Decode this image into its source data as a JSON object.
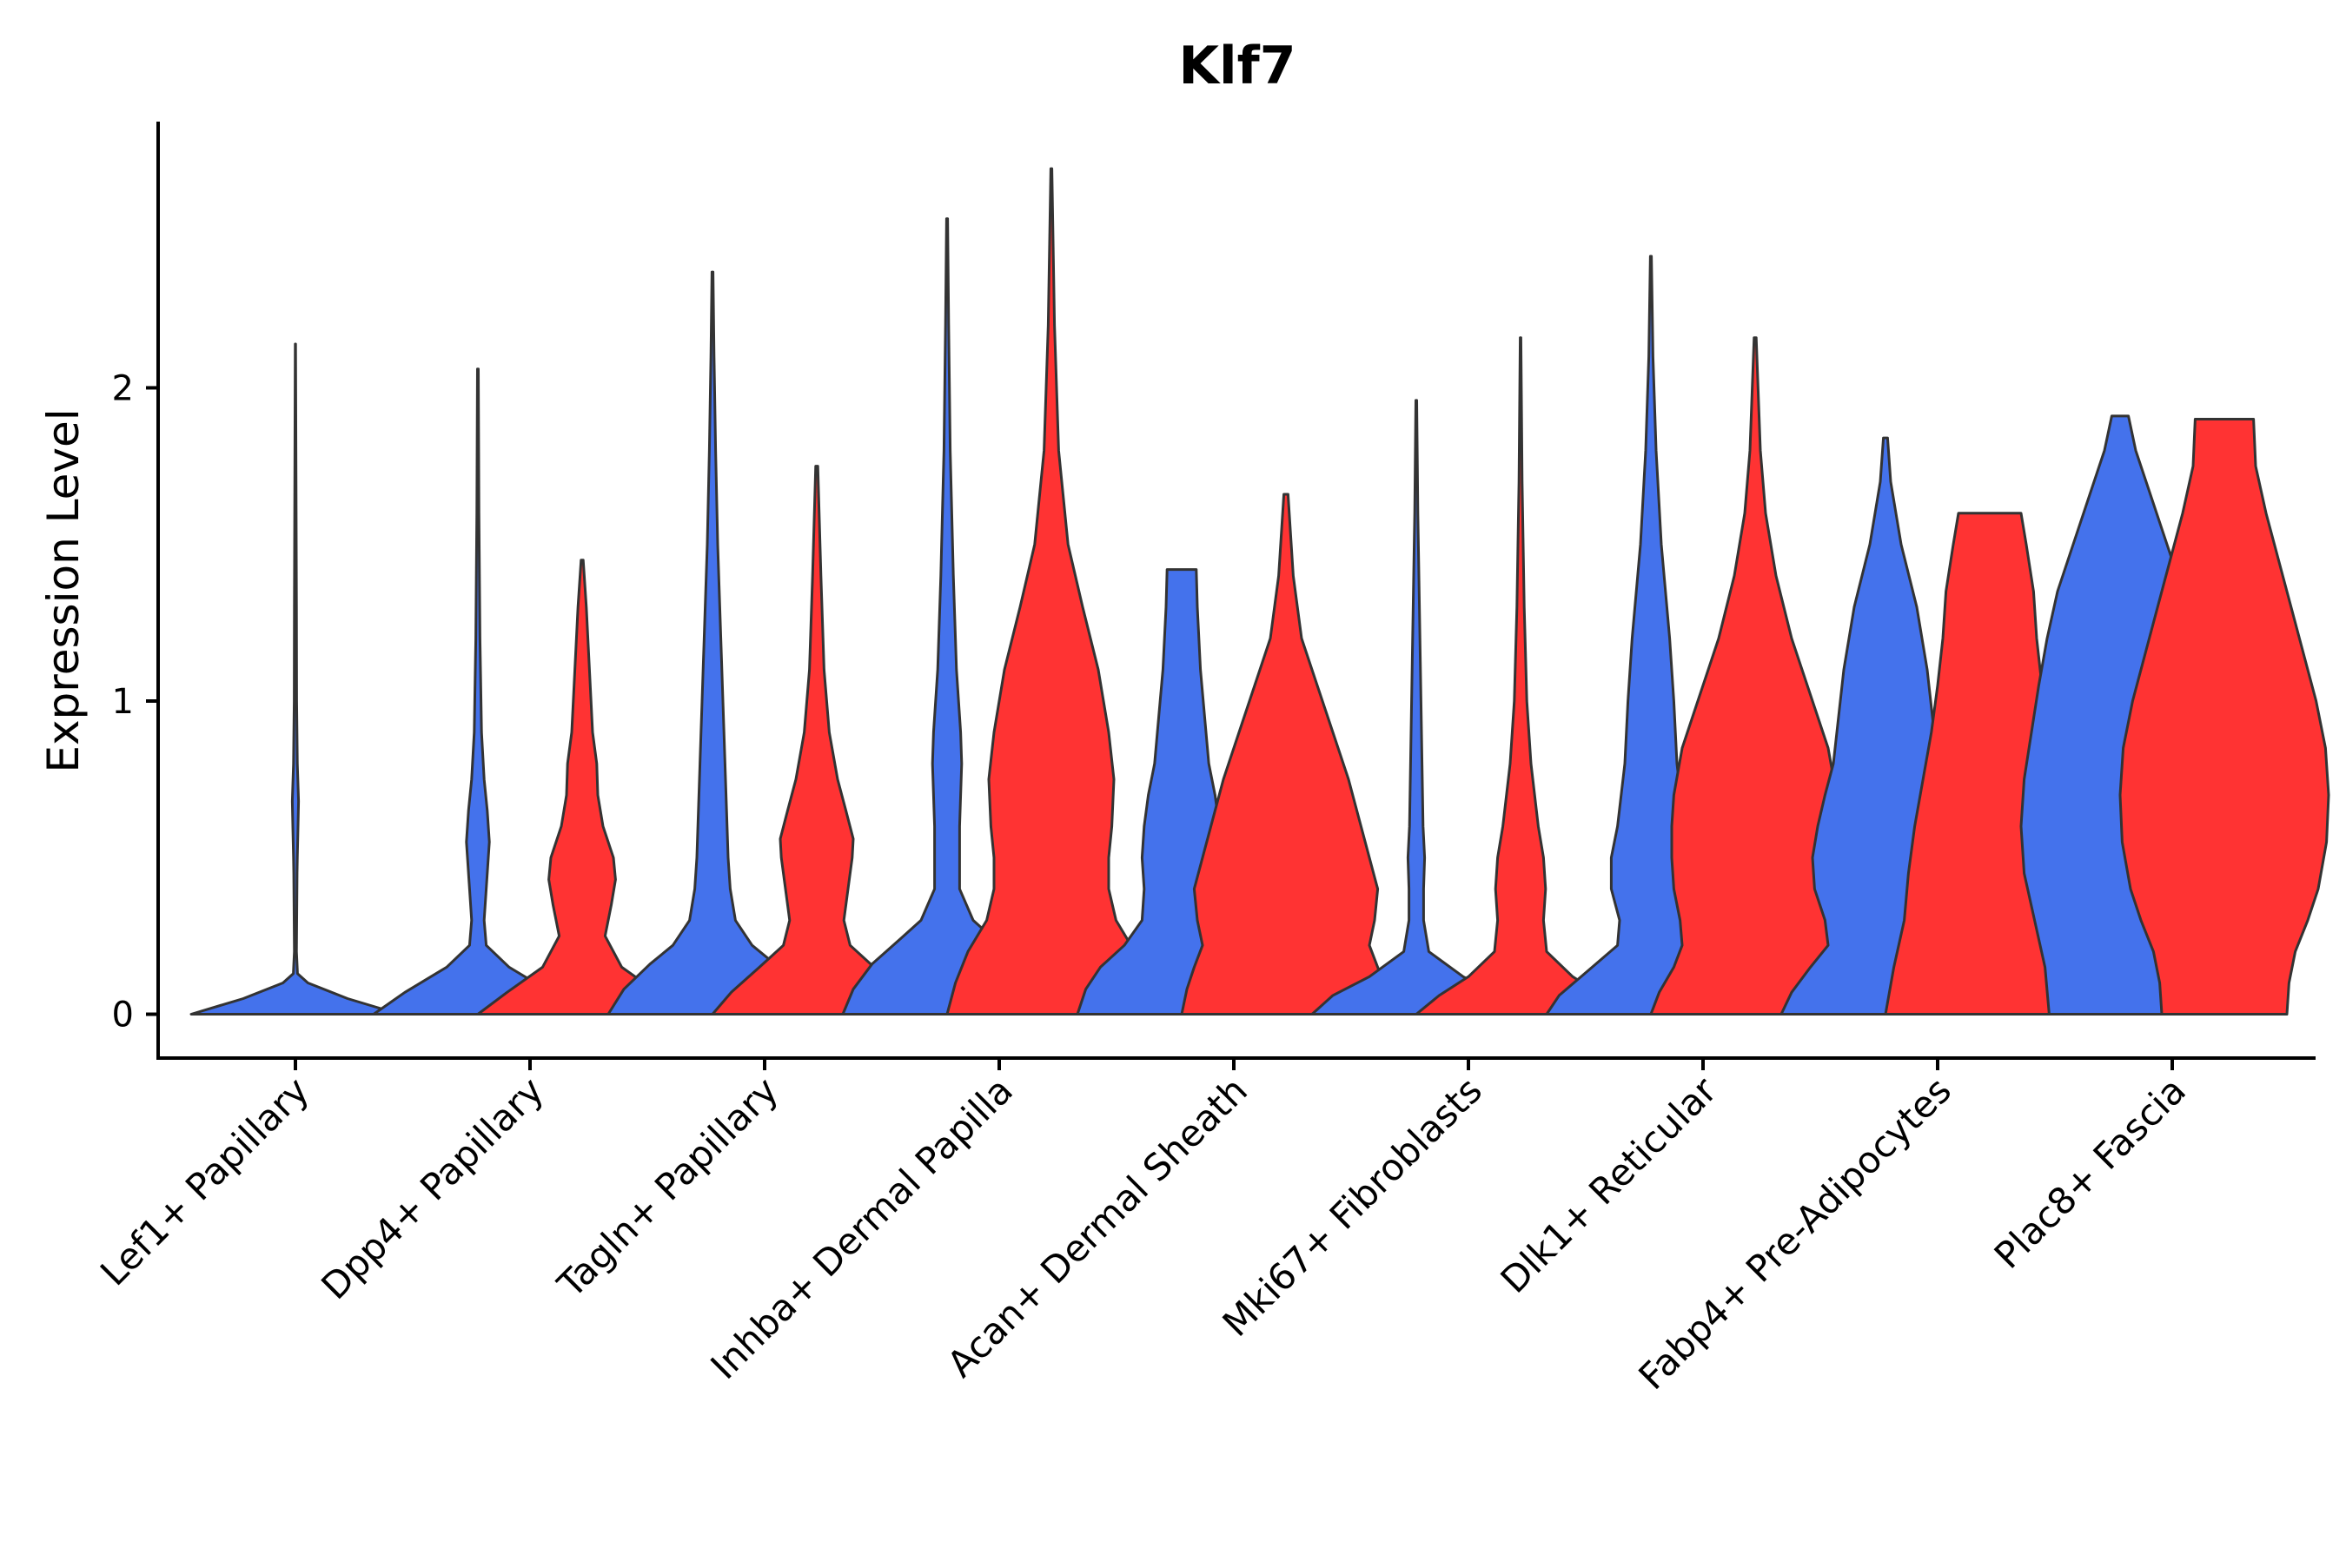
{
  "chart_data": {
    "type": "violin",
    "title": "Klf7",
    "xlabel": "",
    "ylabel": "Expression Level",
    "ylim": [
      -0.14,
      2.85
    ],
    "yticks": [
      0,
      1,
      2
    ],
    "grid": false,
    "legend": "none",
    "colors": {
      "blue": "#4472EC",
      "red": "#FF3333",
      "outline": "#333333"
    },
    "categories": [
      "Lef1+ Papillary",
      "Dpp4+ Papillary",
      "Tagln+ Papillary",
      "Inhba+ Dermal Papilla",
      "Acan+ Dermal Sheath",
      "Mki67+ Fibroblasts",
      "Dlk1+ Reticular",
      "Fabp4+ Pre-Adipocytes",
      "Plac8+ Fascia"
    ],
    "violins": [
      {
        "category": 0,
        "series": "blue",
        "max": 2.14,
        "profile": [
          [
            0,
            1.0
          ],
          [
            0.05,
            0.5
          ],
          [
            0.1,
            0.12
          ],
          [
            0.13,
            0.02
          ],
          [
            0.2,
            0.01
          ],
          [
            0.45,
            0.016
          ],
          [
            0.5,
            0.018
          ],
          [
            0.6,
            0.025
          ],
          [
            0.68,
            0.03
          ],
          [
            0.8,
            0.018
          ],
          [
            1.0,
            0.012
          ],
          [
            1.3,
            0.01
          ],
          [
            1.8,
            0.005
          ],
          [
            2.14,
            0.002
          ]
        ]
      },
      {
        "category": 1,
        "series": "blue",
        "max": 2.06,
        "profile": [
          [
            0,
            1.0
          ],
          [
            0.07,
            0.7
          ],
          [
            0.15,
            0.3
          ],
          [
            0.22,
            0.08
          ],
          [
            0.3,
            0.06
          ],
          [
            0.4,
            0.08
          ],
          [
            0.5,
            0.1
          ],
          [
            0.55,
            0.11
          ],
          [
            0.65,
            0.09
          ],
          [
            0.75,
            0.06
          ],
          [
            0.9,
            0.035
          ],
          [
            1.2,
            0.02
          ],
          [
            1.6,
            0.01
          ],
          [
            2.06,
            0.004
          ]
        ]
      },
      {
        "category": 1,
        "series": "red",
        "max": 1.45,
        "profile": [
          [
            0,
            1.0
          ],
          [
            0.07,
            0.72
          ],
          [
            0.15,
            0.38
          ],
          [
            0.25,
            0.22
          ],
          [
            0.35,
            0.28
          ],
          [
            0.43,
            0.32
          ],
          [
            0.5,
            0.3
          ],
          [
            0.6,
            0.2
          ],
          [
            0.7,
            0.15
          ],
          [
            0.8,
            0.14
          ],
          [
            0.9,
            0.1
          ],
          [
            1.1,
            0.07
          ],
          [
            1.3,
            0.04
          ],
          [
            1.45,
            0.01
          ]
        ]
      },
      {
        "category": 2,
        "series": "blue",
        "max": 2.37,
        "profile": [
          [
            0,
            1.0
          ],
          [
            0.08,
            0.85
          ],
          [
            0.16,
            0.6
          ],
          [
            0.22,
            0.38
          ],
          [
            0.3,
            0.22
          ],
          [
            0.4,
            0.17
          ],
          [
            0.5,
            0.15
          ],
          [
            0.6,
            0.14
          ],
          [
            0.8,
            0.12
          ],
          [
            1.0,
            0.1
          ],
          [
            1.2,
            0.08
          ],
          [
            1.5,
            0.05
          ],
          [
            1.8,
            0.03
          ],
          [
            2.1,
            0.015
          ],
          [
            2.37,
            0.005
          ]
        ]
      },
      {
        "category": 2,
        "series": "red",
        "max": 1.75,
        "profile": [
          [
            0,
            1.0
          ],
          [
            0.07,
            0.82
          ],
          [
            0.15,
            0.55
          ],
          [
            0.22,
            0.32
          ],
          [
            0.3,
            0.26
          ],
          [
            0.4,
            0.3
          ],
          [
            0.5,
            0.34
          ],
          [
            0.56,
            0.35
          ],
          [
            0.65,
            0.28
          ],
          [
            0.75,
            0.2
          ],
          [
            0.9,
            0.12
          ],
          [
            1.1,
            0.07
          ],
          [
            1.4,
            0.04
          ],
          [
            1.75,
            0.01
          ]
        ]
      },
      {
        "category": 3,
        "series": "blue",
        "max": 2.54,
        "profile": [
          [
            0,
            1.0
          ],
          [
            0.08,
            0.9
          ],
          [
            0.16,
            0.72
          ],
          [
            0.24,
            0.45
          ],
          [
            0.3,
            0.25
          ],
          [
            0.4,
            0.12
          ],
          [
            0.6,
            0.12
          ],
          [
            0.8,
            0.14
          ],
          [
            0.9,
            0.13
          ],
          [
            1.1,
            0.09
          ],
          [
            1.4,
            0.06
          ],
          [
            1.8,
            0.03
          ],
          [
            2.2,
            0.015
          ],
          [
            2.54,
            0.005
          ]
        ]
      },
      {
        "category": 3,
        "series": "red",
        "max": 2.7,
        "profile": [
          [
            0,
            1.0
          ],
          [
            0.1,
            0.92
          ],
          [
            0.2,
            0.8
          ],
          [
            0.3,
            0.62
          ],
          [
            0.4,
            0.55
          ],
          [
            0.5,
            0.55
          ],
          [
            0.6,
            0.58
          ],
          [
            0.75,
            0.6
          ],
          [
            0.9,
            0.55
          ],
          [
            1.1,
            0.45
          ],
          [
            1.3,
            0.3
          ],
          [
            1.5,
            0.16
          ],
          [
            1.8,
            0.07
          ],
          [
            2.2,
            0.03
          ],
          [
            2.7,
            0.005
          ]
        ]
      },
      {
        "category": 4,
        "series": "blue",
        "max": 1.42,
        "profile": [
          [
            0,
            1.0
          ],
          [
            0.08,
            0.92
          ],
          [
            0.15,
            0.78
          ],
          [
            0.22,
            0.55
          ],
          [
            0.3,
            0.38
          ],
          [
            0.4,
            0.36
          ],
          [
            0.5,
            0.38
          ],
          [
            0.6,
            0.36
          ],
          [
            0.7,
            0.32
          ],
          [
            0.8,
            0.26
          ],
          [
            0.95,
            0.22
          ],
          [
            1.1,
            0.18
          ],
          [
            1.3,
            0.15
          ],
          [
            1.42,
            0.14
          ]
        ]
      },
      {
        "category": 4,
        "series": "red",
        "max": 1.66,
        "profile": [
          [
            0,
            1.0
          ],
          [
            0.08,
            0.95
          ],
          [
            0.15,
            0.88
          ],
          [
            0.22,
            0.8
          ],
          [
            0.3,
            0.85
          ],
          [
            0.4,
            0.88
          ],
          [
            0.5,
            0.8
          ],
          [
            0.6,
            0.72
          ],
          [
            0.75,
            0.6
          ],
          [
            0.9,
            0.45
          ],
          [
            1.05,
            0.3
          ],
          [
            1.2,
            0.15
          ],
          [
            1.4,
            0.07
          ],
          [
            1.66,
            0.02
          ]
        ]
      },
      {
        "category": 5,
        "series": "blue",
        "max": 1.96,
        "profile": [
          [
            0,
            1.0
          ],
          [
            0.06,
            0.8
          ],
          [
            0.12,
            0.45
          ],
          [
            0.2,
            0.12
          ],
          [
            0.3,
            0.07
          ],
          [
            0.4,
            0.07
          ],
          [
            0.5,
            0.08
          ],
          [
            0.6,
            0.065
          ],
          [
            0.8,
            0.055
          ],
          [
            1.0,
            0.045
          ],
          [
            1.3,
            0.03
          ],
          [
            1.6,
            0.015
          ],
          [
            1.96,
            0.004
          ]
        ]
      },
      {
        "category": 5,
        "series": "red",
        "max": 2.16,
        "profile": [
          [
            0,
            1.0
          ],
          [
            0.06,
            0.78
          ],
          [
            0.12,
            0.5
          ],
          [
            0.2,
            0.25
          ],
          [
            0.3,
            0.22
          ],
          [
            0.4,
            0.24
          ],
          [
            0.5,
            0.22
          ],
          [
            0.6,
            0.17
          ],
          [
            0.8,
            0.1
          ],
          [
            1.0,
            0.06
          ],
          [
            1.3,
            0.035
          ],
          [
            1.7,
            0.015
          ],
          [
            2.16,
            0.003
          ]
        ]
      },
      {
        "category": 6,
        "series": "blue",
        "max": 2.42,
        "profile": [
          [
            0,
            1.0
          ],
          [
            0.06,
            0.88
          ],
          [
            0.14,
            0.6
          ],
          [
            0.22,
            0.32
          ],
          [
            0.3,
            0.3
          ],
          [
            0.4,
            0.38
          ],
          [
            0.5,
            0.38
          ],
          [
            0.6,
            0.32
          ],
          [
            0.8,
            0.25
          ],
          [
            1.0,
            0.22
          ],
          [
            1.2,
            0.18
          ],
          [
            1.5,
            0.1
          ],
          [
            1.8,
            0.05
          ],
          [
            2.1,
            0.02
          ],
          [
            2.42,
            0.005
          ]
        ]
      },
      {
        "category": 6,
        "series": "red",
        "max": 2.16,
        "profile": [
          [
            0,
            1.0
          ],
          [
            0.07,
            0.92
          ],
          [
            0.15,
            0.78
          ],
          [
            0.22,
            0.7
          ],
          [
            0.3,
            0.72
          ],
          [
            0.4,
            0.78
          ],
          [
            0.5,
            0.8
          ],
          [
            0.6,
            0.8
          ],
          [
            0.7,
            0.78
          ],
          [
            0.85,
            0.7
          ],
          [
            1.0,
            0.55
          ],
          [
            1.2,
            0.35
          ],
          [
            1.4,
            0.2
          ],
          [
            1.6,
            0.1
          ],
          [
            1.8,
            0.05
          ],
          [
            2.16,
            0.01
          ]
        ]
      },
      {
        "category": 7,
        "series": "blue",
        "max": 1.84,
        "profile": [
          [
            0,
            1.0
          ],
          [
            0.07,
            0.9
          ],
          [
            0.15,
            0.72
          ],
          [
            0.22,
            0.55
          ],
          [
            0.3,
            0.58
          ],
          [
            0.4,
            0.68
          ],
          [
            0.5,
            0.7
          ],
          [
            0.6,
            0.65
          ],
          [
            0.7,
            0.58
          ],
          [
            0.8,
            0.5
          ],
          [
            0.95,
            0.45
          ],
          [
            1.1,
            0.4
          ],
          [
            1.3,
            0.3
          ],
          [
            1.5,
            0.15
          ],
          [
            1.7,
            0.05
          ],
          [
            1.84,
            0.02
          ]
        ]
      },
      {
        "category": 7,
        "series": "red",
        "max": 1.6,
        "profile": [
          [
            0,
            1.0
          ],
          [
            0.15,
            0.92
          ],
          [
            0.3,
            0.82
          ],
          [
            0.45,
            0.78
          ],
          [
            0.6,
            0.72
          ],
          [
            0.75,
            0.64
          ],
          [
            0.9,
            0.56
          ],
          [
            1.05,
            0.5
          ],
          [
            1.2,
            0.45
          ],
          [
            1.35,
            0.42
          ],
          [
            1.5,
            0.35
          ],
          [
            1.6,
            0.3
          ]
        ]
      },
      {
        "category": 8,
        "series": "blue",
        "max": 1.91,
        "profile": [
          [
            0,
            0.68
          ],
          [
            0.15,
            0.72
          ],
          [
            0.3,
            0.82
          ],
          [
            0.45,
            0.92
          ],
          [
            0.6,
            0.95
          ],
          [
            0.75,
            0.92
          ],
          [
            0.9,
            0.85
          ],
          [
            1.05,
            0.78
          ],
          [
            1.2,
            0.7
          ],
          [
            1.35,
            0.6
          ],
          [
            1.5,
            0.45
          ],
          [
            1.65,
            0.3
          ],
          [
            1.8,
            0.15
          ],
          [
            1.91,
            0.08
          ]
        ]
      },
      {
        "category": 8,
        "series": "red",
        "max": 1.9,
        "profile": [
          [
            0,
            0.6
          ],
          [
            0.1,
            0.62
          ],
          [
            0.2,
            0.68
          ],
          [
            0.3,
            0.8
          ],
          [
            0.4,
            0.9
          ],
          [
            0.55,
            0.98
          ],
          [
            0.7,
            1.0
          ],
          [
            0.85,
            0.97
          ],
          [
            1.0,
            0.88
          ],
          [
            1.15,
            0.76
          ],
          [
            1.3,
            0.64
          ],
          [
            1.45,
            0.52
          ],
          [
            1.6,
            0.4
          ],
          [
            1.75,
            0.3
          ],
          [
            1.9,
            0.28
          ]
        ]
      }
    ]
  }
}
